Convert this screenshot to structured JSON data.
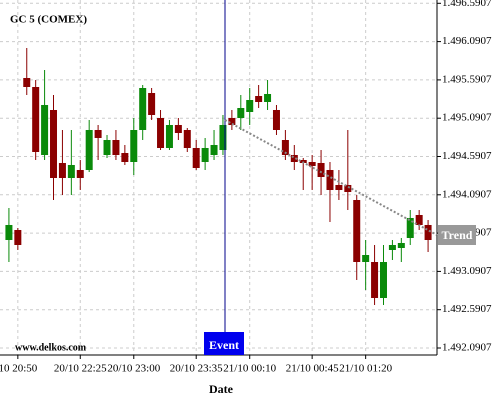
{
  "chart_data": {
    "type": "candlestick",
    "title": "GC 5 (COMEX)",
    "x_label": "Date",
    "up_color": "#0a8a0a",
    "down_color": "#8b0000",
    "grid": true,
    "ylim": [
      1491.9993,
      1496.6338
    ],
    "yticks": [
      {
        "value": 1492.0907,
        "label": "1.492.0907"
      },
      {
        "value": 1492.5907,
        "label": "1.492.5907"
      },
      {
        "value": 1493.0907,
        "label": "1.493.0907"
      },
      {
        "value": 1493.5907,
        "label": "1.493.5907"
      },
      {
        "value": 1494.0907,
        "label": "1.494.0907"
      },
      {
        "value": 1494.5907,
        "label": "1.494.5907"
      },
      {
        "value": 1495.0907,
        "label": "1.495.0907"
      },
      {
        "value": 1495.5907,
        "label": "1.495.5907"
      },
      {
        "value": 1496.0907,
        "label": "1.496.0907"
      },
      {
        "value": 1496.5907,
        "label": "1.496.5907"
      }
    ],
    "xlim": [
      -1,
      48
    ],
    "xticks": [
      {
        "value": 1,
        "label": "10 20:50"
      },
      {
        "value": 8,
        "label": "20/10 22:25"
      },
      {
        "value": 14,
        "label": "20/10 23:00"
      },
      {
        "value": 21,
        "label": "20/10 23:35"
      },
      {
        "value": 27,
        "label": "21/10 00:10"
      },
      {
        "value": 34,
        "label": "21/10 00:45"
      },
      {
        "value": 40,
        "label": "21/10 01:20"
      }
    ],
    "open": [
      1493.5006,
      1493.6312,
      1495.6156,
      1495.4981,
      1494.6103,
      1495.1978,
      1494.5059,
      1494.3101,
      1494.4145,
      1494.4145,
      1494.9367,
      1494.6103,
      1494.8061,
      1494.6364,
      1494.5189,
      1494.9367,
      1495.4197,
      1495.0934,
      1494.7017,
      1495.0019,
      1494.9367,
      1494.7017,
      1494.5189,
      1494.6103,
      1494.6756,
      1495.0934,
      1495.0934,
      1495.1717,
      1495.3806,
      1495.3022,
      1495.1978,
      1494.8061,
      1494.6103,
      1494.545,
      1494.5189,
      1494.5059,
      1494.4145,
      1494.2187,
      1494.2187,
      1494.0228,
      1493.2134,
      1493.2134,
      1492.7435,
      1493.3701,
      1493.3962,
      1493.5268,
      1493.827,
      1493.6965
    ],
    "high": [
      1493.9184,
      1493.6573,
      1496.0072,
      1495.5894,
      1495.72,
      1495.3936,
      1494.9367,
      1494.9367,
      1494.545,
      1495.0673,
      1495.0019,
      1494.8714,
      1494.9367,
      1494.7409,
      1495.0934,
      1495.5242,
      1495.485,
      1495.1978,
      1495.0673,
      1495.0934,
      1494.9628,
      1494.8061,
      1494.8323,
      1494.9367,
      1495.1325,
      1495.1978,
      1495.3936,
      1495.485,
      1495.5242,
      1495.5894,
      1495.2631,
      1494.9367,
      1494.7409,
      1494.5712,
      1494.6103,
      1494.6756,
      1494.5189,
      1494.4145,
      1494.9367,
      1494.0881,
      1493.5006,
      1493.4354,
      1493.4354,
      1493.5006,
      1493.5268,
      1493.8923,
      1493.8923,
      1493.7617
    ],
    "low": [
      1493.2134,
      1493.3701,
      1495.3936,
      1494.545,
      1494.545,
      1494.0228,
      1494.0881,
      1494.0881,
      1494.1534,
      1494.3884,
      1494.545,
      1494.5712,
      1494.545,
      1494.4798,
      1494.3493,
      1494.8061,
      1495.0673,
      1494.6756,
      1494.6756,
      1494.8061,
      1494.6495,
      1494.4145,
      1494.4145,
      1494.545,
      1494.6103,
      1494.9367,
      1494.9367,
      1495.0019,
      1495.2239,
      1495.1978,
      1494.8714,
      1494.545,
      1494.4145,
      1494.1534,
      1494.1534,
      1494.0881,
      1493.7356,
      1494.0228,
      1493.8923,
      1492.9784,
      1492.8479,
      1492.6521,
      1492.6521,
      1493.2395,
      1493.2134,
      1493.4354,
      1493.6312,
      1493.344
    ],
    "close": [
      1493.6965,
      1493.4354,
      1495.4981,
      1494.6495,
      1495.2631,
      1494.3101,
      1494.3101,
      1494.4798,
      1494.3101,
      1494.9367,
      1494.8323,
      1494.8061,
      1494.6103,
      1494.5189,
      1494.9367,
      1495.485,
      1495.1325,
      1494.7017,
      1495.0019,
      1494.8975,
      1494.7017,
      1494.4406,
      1494.7017,
      1494.7409,
      1495.0019,
      1495.0019,
      1495.2239,
      1495.3284,
      1495.3022,
      1495.4067,
      1494.9367,
      1494.6103,
      1494.5189,
      1494.5059,
      1494.4667,
      1494.3231,
      1494.1534,
      1494.1534,
      1494.1273,
      1493.2134,
      1493.3048,
      1492.7435,
      1493.2134,
      1493.4354,
      1493.4615,
      1493.7879,
      1493.6965,
      1493.5006
    ],
    "annotations": {
      "event": "Event",
      "trend": "Trend",
      "watermark": "www.delkos.com"
    }
  }
}
